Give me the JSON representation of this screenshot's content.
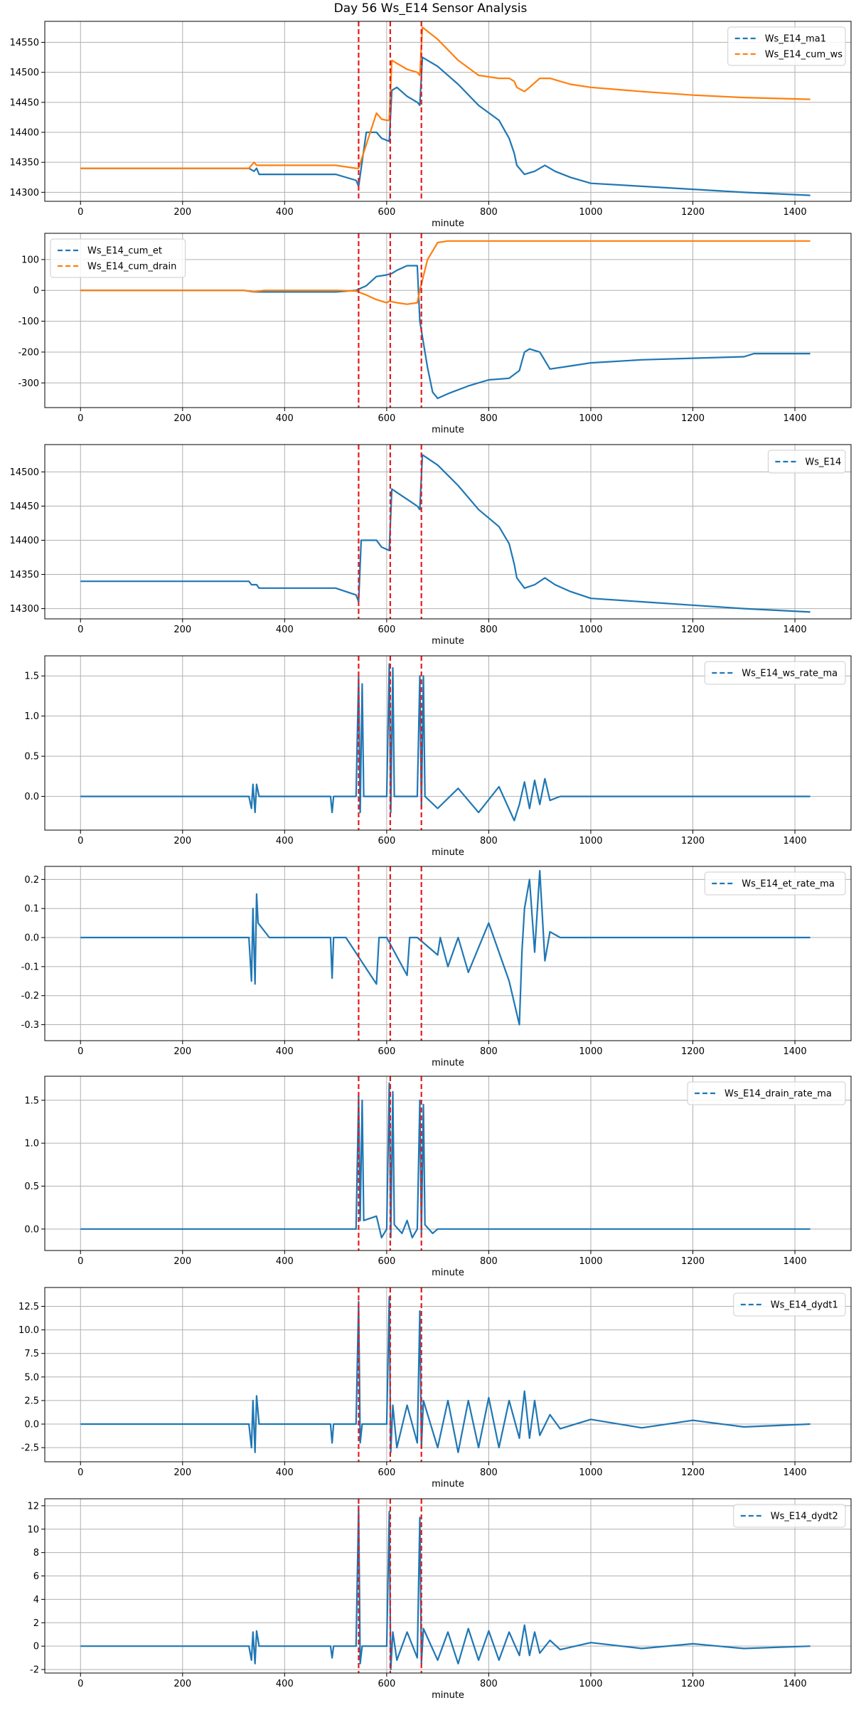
{
  "figure_title": "Day 56 Ws_E14 Sensor Analysis",
  "colors": {
    "blue": "#1f77b4",
    "orange": "#ff7f0e",
    "vline": "#e41a1c",
    "grid": "#b0b0b0"
  },
  "event_lines": [
    545,
    607,
    668
  ],
  "chart_data": [
    {
      "type": "line",
      "title": "Day 56 Ws_E14 Sensor Analysis",
      "xlabel": "minute",
      "xlim": [
        -70,
        1510
      ],
      "ylim": [
        14285,
        14585
      ],
      "xticks": [
        0,
        200,
        400,
        600,
        800,
        1000,
        1200,
        1400
      ],
      "yticks": [
        14300,
        14350,
        14400,
        14450,
        14500,
        14550
      ],
      "legend_position": "top-right",
      "series": [
        {
          "name": "Ws_E14_ma1",
          "color": "#1f77b4",
          "x": [
            0,
            330,
            340,
            345,
            350,
            500,
            540,
            545,
            560,
            580,
            590,
            605,
            610,
            620,
            640,
            660,
            665,
            670,
            700,
            740,
            780,
            820,
            840,
            850,
            855,
            870,
            890,
            910,
            930,
            960,
            1000,
            1100,
            1200,
            1300,
            1430
          ],
          "y": [
            14340,
            14340,
            14335,
            14340,
            14330,
            14330,
            14320,
            14310,
            14400,
            14400,
            14390,
            14385,
            14470,
            14475,
            14460,
            14450,
            14445,
            14525,
            14510,
            14480,
            14445,
            14420,
            14390,
            14365,
            14345,
            14330,
            14335,
            14345,
            14335,
            14325,
            14315,
            14310,
            14305,
            14300,
            14295
          ]
        },
        {
          "name": "Ws_E14_cum_ws",
          "color": "#ff7f0e",
          "x": [
            0,
            330,
            340,
            345,
            350,
            500,
            540,
            545,
            580,
            590,
            600,
            605,
            610,
            640,
            660,
            665,
            670,
            700,
            740,
            780,
            820,
            840,
            850,
            855,
            870,
            880,
            900,
            920,
            960,
            1000,
            1100,
            1200,
            1300,
            1430
          ],
          "y": [
            14340,
            14340,
            14350,
            14345,
            14345,
            14345,
            14340,
            14340,
            14432,
            14422,
            14420,
            14420,
            14520,
            14505,
            14500,
            14495,
            14575,
            14555,
            14520,
            14495,
            14490,
            14490,
            14485,
            14475,
            14468,
            14475,
            14490,
            14490,
            14480,
            14475,
            14468,
            14462,
            14458,
            14455
          ]
        }
      ]
    },
    {
      "type": "line",
      "xlabel": "minute",
      "xlim": [
        -70,
        1510
      ],
      "ylim": [
        -380,
        185
      ],
      "xticks": [
        0,
        200,
        400,
        600,
        800,
        1000,
        1200,
        1400
      ],
      "yticks": [
        -300,
        -200,
        -100,
        0,
        100
      ],
      "legend_position": "top-left",
      "series": [
        {
          "name": "Ws_E14_cum_et",
          "color": "#1f77b4",
          "x": [
            0,
            320,
            340,
            360,
            500,
            540,
            560,
            580,
            600,
            610,
            620,
            640,
            660,
            665,
            680,
            690,
            700,
            720,
            760,
            800,
            840,
            860,
            870,
            880,
            900,
            920,
            960,
            1000,
            1100,
            1200,
            1300,
            1320,
            1430
          ],
          "y": [
            0,
            0,
            -5,
            -5,
            -5,
            0,
            15,
            45,
            50,
            55,
            65,
            80,
            80,
            -100,
            -250,
            -330,
            -350,
            -335,
            -310,
            -290,
            -285,
            -260,
            -200,
            -190,
            -200,
            -255,
            -245,
            -235,
            -225,
            -220,
            -215,
            -205,
            -205
          ]
        },
        {
          "name": "Ws_E14_cum_drain",
          "color": "#ff7f0e",
          "x": [
            0,
            320,
            340,
            360,
            500,
            540,
            560,
            580,
            600,
            605,
            620,
            640,
            660,
            665,
            680,
            700,
            720,
            760,
            900,
            1100,
            1300,
            1430
          ],
          "y": [
            0,
            0,
            -5,
            0,
            0,
            -2,
            -15,
            -30,
            -40,
            -35,
            -40,
            -45,
            -40,
            0,
            100,
            155,
            160,
            160,
            160,
            160,
            160,
            160
          ]
        }
      ]
    },
    {
      "type": "line",
      "xlabel": "minute",
      "xlim": [
        -70,
        1510
      ],
      "ylim": [
        14285,
        14540
      ],
      "xticks": [
        0,
        200,
        400,
        600,
        800,
        1000,
        1200,
        1400
      ],
      "yticks": [
        14300,
        14350,
        14400,
        14450,
        14500
      ],
      "legend_position": "top-right",
      "series": [
        {
          "name": "Ws_E14",
          "color": "#1f77b4",
          "x": [
            0,
            330,
            335,
            345,
            350,
            500,
            540,
            545,
            550,
            580,
            590,
            605,
            610,
            620,
            640,
            660,
            665,
            670,
            700,
            740,
            780,
            820,
            840,
            850,
            855,
            870,
            890,
            910,
            930,
            960,
            1000,
            1100,
            1200,
            1300,
            1430
          ],
          "y": [
            14340,
            14340,
            14335,
            14335,
            14330,
            14330,
            14320,
            14310,
            14400,
            14400,
            14390,
            14385,
            14475,
            14470,
            14460,
            14450,
            14445,
            14525,
            14510,
            14480,
            14445,
            14420,
            14395,
            14365,
            14345,
            14330,
            14335,
            14345,
            14335,
            14325,
            14315,
            14310,
            14305,
            14300,
            14295
          ]
        }
      ]
    },
    {
      "type": "line",
      "xlabel": "minute",
      "xlim": [
        -70,
        1510
      ],
      "ylim": [
        -0.42,
        1.75
      ],
      "xticks": [
        0,
        200,
        400,
        600,
        800,
        1000,
        1200,
        1400
      ],
      "yticks": [
        0.0,
        0.5,
        1.0,
        1.5
      ],
      "legend_position": "top-right",
      "series": [
        {
          "name": "Ws_E14_ws_rate_ma",
          "color": "#1f77b4",
          "x": [
            0,
            330,
            335,
            338,
            342,
            345,
            350,
            490,
            493,
            496,
            540,
            545,
            548,
            552,
            555,
            600,
            605,
            608,
            612,
            615,
            660,
            665,
            668,
            672,
            675,
            700,
            740,
            780,
            820,
            850,
            860,
            870,
            880,
            890,
            900,
            910,
            920,
            940,
            1000,
            1100,
            1200,
            1300,
            1430
          ],
          "y": [
            0,
            0,
            -0.15,
            0.15,
            -0.2,
            0.15,
            0,
            0,
            -0.2,
            0,
            0,
            1.5,
            -0.2,
            1.4,
            0,
            0,
            1.65,
            -0.2,
            1.6,
            0,
            0,
            1.5,
            -0.15,
            1.5,
            0,
            -0.15,
            0.1,
            -0.2,
            0.12,
            -0.3,
            -0.1,
            0.18,
            -0.15,
            0.2,
            -0.1,
            0.22,
            -0.05,
            0,
            0,
            0,
            0,
            0,
            0
          ]
        }
      ]
    },
    {
      "type": "line",
      "xlabel": "minute",
      "xlim": [
        -70,
        1510
      ],
      "ylim": [
        -0.355,
        0.245
      ],
      "xticks": [
        0,
        200,
        400,
        600,
        800,
        1000,
        1200,
        1400
      ],
      "yticks": [
        -0.3,
        -0.2,
        -0.1,
        0.0,
        0.1,
        0.2
      ],
      "legend_position": "top-right",
      "series": [
        {
          "name": "Ws_E14_et_rate_ma",
          "color": "#1f77b4",
          "x": [
            0,
            330,
            335,
            338,
            342,
            345,
            348,
            370,
            490,
            493,
            496,
            520,
            580,
            585,
            600,
            640,
            645,
            660,
            700,
            705,
            720,
            740,
            760,
            800,
            840,
            860,
            865,
            870,
            880,
            890,
            900,
            910,
            920,
            940,
            1000,
            1100,
            1200,
            1300,
            1430
          ],
          "y": [
            0,
            0,
            -0.15,
            0.1,
            -0.16,
            0.15,
            0.05,
            0,
            0,
            -0.14,
            0,
            0,
            -0.16,
            0,
            0,
            -0.13,
            0,
            0,
            -0.06,
            0,
            -0.1,
            0,
            -0.12,
            0.05,
            -0.15,
            -0.3,
            -0.05,
            0.1,
            0.2,
            -0.05,
            0.23,
            -0.08,
            0.02,
            0,
            0,
            0,
            0,
            0,
            0
          ]
        }
      ]
    },
    {
      "type": "line",
      "xlabel": "minute",
      "xlim": [
        -70,
        1510
      ],
      "ylim": [
        -0.25,
        1.78
      ],
      "xticks": [
        0,
        200,
        400,
        600,
        800,
        1000,
        1200,
        1400
      ],
      "yticks": [
        0.0,
        0.5,
        1.0,
        1.5
      ],
      "legend_position": "top-right",
      "series": [
        {
          "name": "Ws_E14_drain_rate_ma",
          "color": "#1f77b4",
          "x": [
            0,
            540,
            545,
            548,
            552,
            555,
            580,
            590,
            600,
            605,
            608,
            612,
            615,
            630,
            640,
            650,
            660,
            665,
            668,
            672,
            675,
            690,
            700,
            1000,
            1430
          ],
          "y": [
            0,
            0,
            1.55,
            0.1,
            1.5,
            0.1,
            0.15,
            -0.1,
            0,
            1.7,
            -0.1,
            1.6,
            0.05,
            -0.05,
            0.1,
            -0.1,
            0,
            1.5,
            -0.05,
            1.45,
            0.05,
            -0.05,
            0,
            0,
            0
          ]
        }
      ]
    },
    {
      "type": "line",
      "xlabel": "minute",
      "xlim": [
        -70,
        1510
      ],
      "ylim": [
        -4.0,
        14.5
      ],
      "xticks": [
        0,
        200,
        400,
        600,
        800,
        1000,
        1200,
        1400
      ],
      "yticks": [
        -2.5,
        0.0,
        2.5,
        5.0,
        7.5,
        10.0,
        12.5
      ],
      "legend_position": "top-right",
      "series": [
        {
          "name": "Ws_E14_dydt1",
          "color": "#1f77b4",
          "x": [
            0,
            330,
            335,
            338,
            342,
            345,
            350,
            490,
            493,
            496,
            540,
            545,
            548,
            552,
            600,
            605,
            608,
            612,
            620,
            640,
            660,
            665,
            668,
            672,
            700,
            720,
            740,
            760,
            780,
            800,
            820,
            840,
            860,
            870,
            880,
            890,
            900,
            920,
            940,
            1000,
            1100,
            1200,
            1300,
            1430
          ],
          "y": [
            0,
            0,
            -2.5,
            2.5,
            -3,
            3,
            0,
            0,
            -2,
            0,
            0,
            13,
            -2,
            0,
            0,
            13.5,
            -3,
            2,
            -2.5,
            2,
            -2,
            12,
            -2.5,
            2.5,
            -2.5,
            2.5,
            -3,
            2.5,
            -2.5,
            2.8,
            -2.5,
            2.5,
            -1.5,
            3.5,
            -1.5,
            2.5,
            -1.2,
            1,
            -0.5,
            0.5,
            -0.4,
            0.4,
            -0.3,
            0
          ]
        }
      ]
    },
    {
      "type": "line",
      "xlabel": "minute",
      "xlim": [
        -70,
        1510
      ],
      "ylim": [
        -2.3,
        12.6
      ],
      "xticks": [
        0,
        200,
        400,
        600,
        800,
        1000,
        1200,
        1400
      ],
      "yticks": [
        -2,
        0,
        2,
        4,
        6,
        8,
        10,
        12
      ],
      "legend_position": "top-right",
      "series": [
        {
          "name": "Ws_E14_dydt2",
          "color": "#1f77b4",
          "x": [
            0,
            330,
            335,
            338,
            342,
            345,
            350,
            490,
            493,
            496,
            540,
            545,
            548,
            552,
            600,
            605,
            608,
            612,
            620,
            640,
            660,
            665,
            668,
            672,
            700,
            720,
            740,
            760,
            780,
            800,
            820,
            840,
            860,
            870,
            880,
            890,
            900,
            920,
            940,
            1000,
            1100,
            1200,
            1300,
            1430
          ],
          "y": [
            0,
            0,
            -1.2,
            1.2,
            -1.5,
            1.3,
            0,
            0,
            -1,
            0,
            0,
            12,
            -1.5,
            0,
            0,
            11.5,
            -2,
            1.2,
            -1.2,
            1.2,
            -1,
            11,
            -1.5,
            1.5,
            -1.2,
            1.2,
            -1.5,
            1.5,
            -1.2,
            1.3,
            -1.2,
            1.2,
            -0.8,
            1.8,
            -0.8,
            1.2,
            -0.6,
            0.5,
            -0.3,
            0.3,
            -0.2,
            0.2,
            -0.2,
            0
          ]
        }
      ]
    }
  ]
}
